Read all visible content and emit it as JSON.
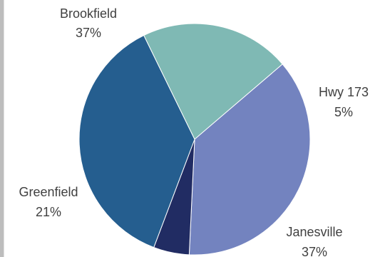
{
  "chart_data": {
    "type": "pie",
    "title": "",
    "slices": [
      {
        "label": "Brookfield",
        "percent_label": "37%",
        "value": 37,
        "color": "#7383BF"
      },
      {
        "label": "Hwy 173",
        "percent_label": "5%",
        "value": 5,
        "color": "#212C63"
      },
      {
        "label": "Janesville",
        "percent_label": "37%",
        "value": 37,
        "color": "#255E8F"
      },
      {
        "label": "Greenfield",
        "percent_label": "21%",
        "value": 21,
        "color": "#7FB9B4"
      }
    ],
    "start_angle_deg": -40.5,
    "direction": "clockwise"
  }
}
